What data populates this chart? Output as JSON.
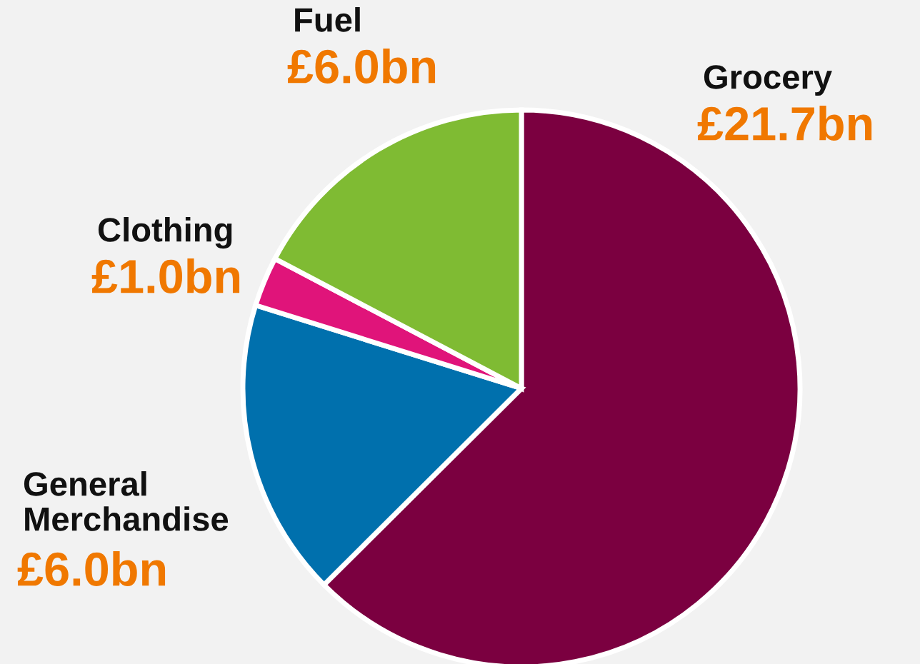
{
  "chart_data": {
    "type": "pie",
    "categories": [
      "Grocery",
      "General\nMerchandise",
      "Clothing",
      "Fuel"
    ],
    "values": [
      21.7,
      6.0,
      1.0,
      6.0
    ],
    "colors": [
      "#7b0040",
      "#0070ad",
      "#e0147a",
      "#7fbb33"
    ],
    "value_labels": [
      "£21.7bn",
      "£6.0bn",
      "£1.0bn",
      "£6.0bn"
    ]
  }
}
